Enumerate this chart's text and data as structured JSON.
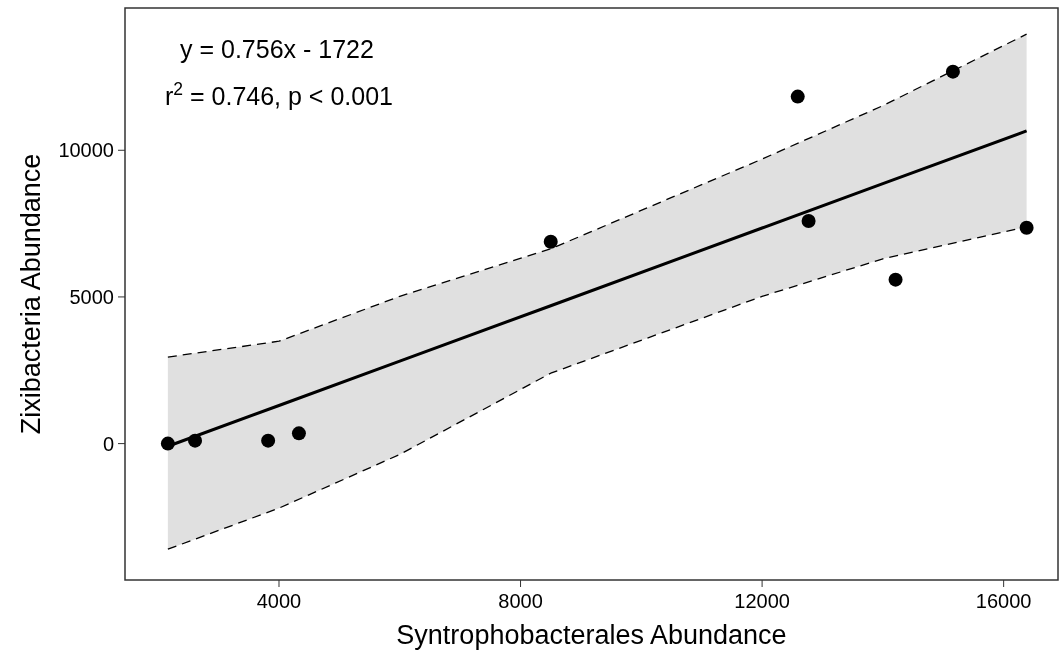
{
  "chart_data": {
    "type": "scatter",
    "xlabel": "Syntrophobacterales Abundance",
    "ylabel": "Zixibacteria Abundance",
    "xlim": [
      1450,
      16900
    ],
    "ylim": [
      -4650,
      14850
    ],
    "xticks": [
      4000,
      8000,
      12000,
      16000
    ],
    "yticks": [
      0,
      5000,
      10000
    ],
    "annotations": [
      "y = 0.756x - 1722",
      "r$^{2}$ = 0.746, p < 0.001"
    ],
    "series": [
      {
        "type": "line",
        "color": "#000000",
        "line_style": "solid",
        "x": [
          2160,
          4000,
          6000,
          8500,
          12000,
          14000,
          16380
        ],
        "values": [
          -90,
          1300,
          2810,
          4700,
          7350,
          8860,
          10660
        ],
        "lower": [
          -3600,
          -2200,
          -370,
          2400,
          5020,
          6300,
          7390
        ],
        "upper": [
          2950,
          3490,
          5020,
          6640,
          9700,
          11520,
          13960
        ]
      },
      {
        "type": "line",
        "color": "#000000",
        "line_style": "dashed",
        "x": [
          2160,
          4000,
          6000,
          8500,
          12000,
          14000,
          16380
        ],
        "values": [
          -3600,
          -2200,
          -370,
          2400,
          5020,
          6300,
          7390
        ]
      },
      {
        "type": "line",
        "color": "#000000",
        "line_style": "dashed",
        "x": [
          2160,
          4000,
          6000,
          8500,
          12000,
          14000,
          16380
        ],
        "values": [
          2950,
          3490,
          5020,
          6640,
          9700,
          11520,
          13960
        ]
      },
      {
        "color": "#000000",
        "marker": "circle",
        "x": [
          2160,
          2610,
          3820,
          4330,
          8500,
          12590,
          12770,
          14210,
          15160,
          16380
        ],
        "values": [
          0,
          100,
          100,
          350,
          6880,
          11830,
          7590,
          5590,
          12680,
          7360
        ]
      }
    ]
  }
}
